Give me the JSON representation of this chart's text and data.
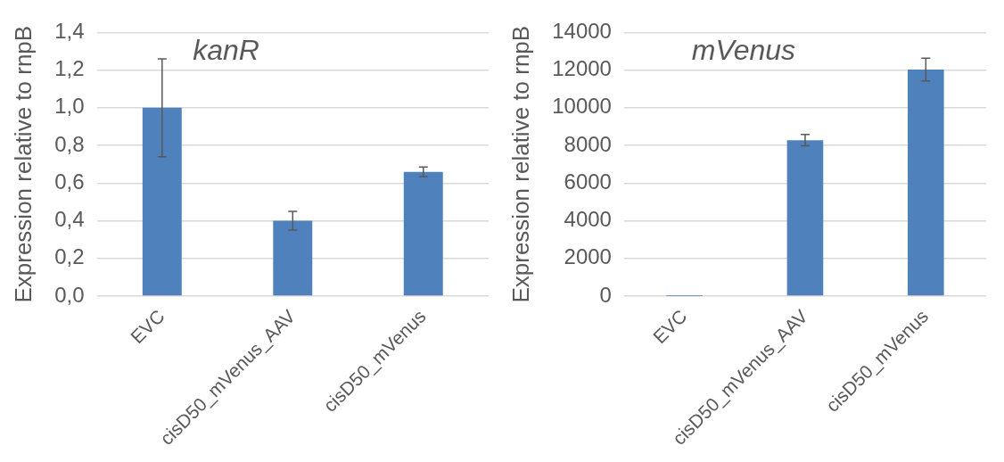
{
  "chart_data": [
    {
      "type": "bar",
      "title": "kanR",
      "ylabel": "Expression relative to rnpB",
      "categories": [
        "EVC",
        "cisD50_mVenus_AAV",
        "cisD50_mVenus"
      ],
      "values": [
        1.0,
        0.4,
        0.66
      ],
      "errors": [
        0.26,
        0.05,
        0.025
      ],
      "color": "#4f81bd",
      "ylim": [
        0,
        1.4
      ],
      "yticks": [
        {
          "value": 0,
          "label": "0,0"
        },
        {
          "value": 0.2,
          "label": "0,2"
        },
        {
          "value": 0.4,
          "label": "0,4"
        },
        {
          "value": 0.6,
          "label": "0,6"
        },
        {
          "value": 0.8,
          "label": "0,8"
        },
        {
          "value": 1.0,
          "label": "1,0"
        },
        {
          "value": 1.2,
          "label": "1,2"
        },
        {
          "value": 1.4,
          "label": "1,4"
        }
      ],
      "grid": "y",
      "legend": false
    },
    {
      "type": "bar",
      "title": "mVenus",
      "ylabel": "Expression relative to rnpB",
      "categories": [
        "EVC",
        "cisD50_mVenus_AAV",
        "cisD50_mVenus"
      ],
      "values": [
        1,
        8280,
        12030
      ],
      "errors": [
        null,
        300,
        600
      ],
      "color": "#4f81bd",
      "ylim": [
        0,
        14000
      ],
      "yticks": [
        0,
        2000,
        4000,
        6000,
        8000,
        10000,
        12000,
        14000
      ],
      "grid": "y",
      "legend": false
    }
  ]
}
